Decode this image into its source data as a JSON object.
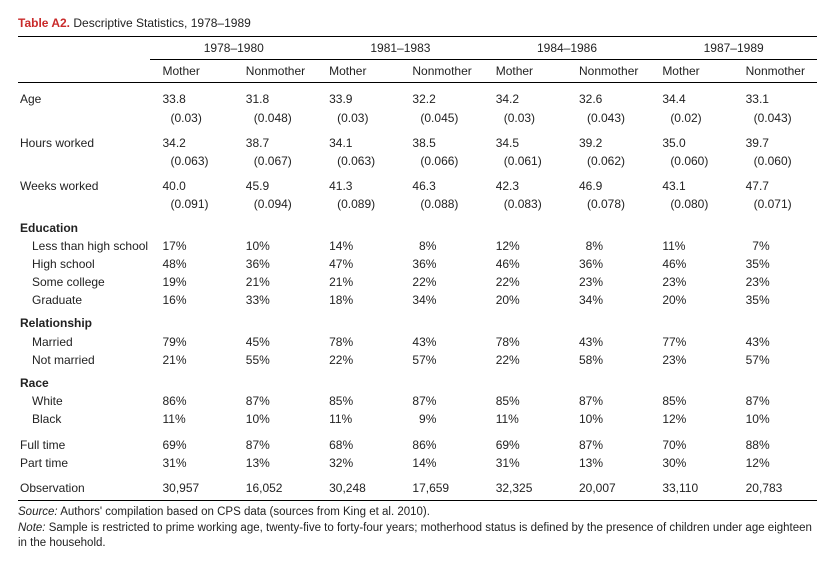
{
  "title_label": "Table A2.",
  "title_text": "Descriptive Statistics, 1978–1989",
  "periods": [
    "1978–1980",
    "1981–1983",
    "1984–1986",
    "1987–1989"
  ],
  "subheads": [
    "Mother",
    "Nonmother"
  ],
  "rows": [
    {
      "type": "gap"
    },
    {
      "label": "Age",
      "vals": [
        "33.8",
        "31.8",
        "33.9",
        "32.2",
        "34.2",
        "32.6",
        "34.4",
        "33.1"
      ]
    },
    {
      "type": "se",
      "vals": [
        "(0.03)",
        "(0.048)",
        "(0.03)",
        "(0.045)",
        "(0.03)",
        "(0.043)",
        "(0.02)",
        "(0.043)"
      ]
    },
    {
      "type": "gap"
    },
    {
      "label": "Hours worked",
      "vals": [
        "34.2",
        "38.7",
        "34.1",
        "38.5",
        "34.5",
        "39.2",
        "35.0",
        "39.7"
      ]
    },
    {
      "type": "se",
      "vals": [
        "(0.063)",
        "(0.067)",
        "(0.063)",
        "(0.066)",
        "(0.061)",
        "(0.062)",
        "(0.060)",
        "(0.060)"
      ]
    },
    {
      "type": "gap"
    },
    {
      "label": "Weeks worked",
      "vals": [
        "40.0",
        "45.9",
        "41.3",
        "46.3",
        "42.3",
        "46.9",
        "43.1",
        "47.7"
      ]
    },
    {
      "type": "se",
      "vals": [
        "(0.091)",
        "(0.094)",
        "(0.089)",
        "(0.088)",
        "(0.083)",
        "(0.078)",
        "(0.080)",
        "(0.071)"
      ]
    },
    {
      "type": "section",
      "label": "Education"
    },
    {
      "type": "indent",
      "label": "Less than high school",
      "vals": [
        "17%",
        "10%",
        "14%",
        "  8%",
        "12%",
        "  8%",
        "11%",
        "  7%"
      ]
    },
    {
      "type": "indent",
      "label": "High school",
      "vals": [
        "48%",
        "36%",
        "47%",
        "36%",
        "46%",
        "36%",
        "46%",
        "35%"
      ]
    },
    {
      "type": "indent",
      "label": "Some college",
      "vals": [
        "19%",
        "21%",
        "21%",
        "22%",
        "22%",
        "23%",
        "23%",
        "23%"
      ]
    },
    {
      "type": "indent",
      "label": "Graduate",
      "vals": [
        "16%",
        "33%",
        "18%",
        "34%",
        "20%",
        "34%",
        "20%",
        "35%"
      ]
    },
    {
      "type": "section",
      "label": "Relationship"
    },
    {
      "type": "indent",
      "label": "Married",
      "vals": [
        "79%",
        "45%",
        "78%",
        "43%",
        "78%",
        "43%",
        "77%",
        "43%"
      ]
    },
    {
      "type": "indent",
      "label": "Not married",
      "vals": [
        "21%",
        "55%",
        "22%",
        "57%",
        "22%",
        "58%",
        "23%",
        "57%"
      ]
    },
    {
      "type": "section",
      "label": "Race"
    },
    {
      "type": "indent",
      "label": "White",
      "vals": [
        "86%",
        "87%",
        "85%",
        "87%",
        "85%",
        "87%",
        "85%",
        "87%"
      ]
    },
    {
      "type": "indent",
      "label": "Black",
      "vals": [
        "11%",
        "10%",
        "11%",
        "  9%",
        "11%",
        "10%",
        "12%",
        "10%"
      ]
    },
    {
      "type": "gap"
    },
    {
      "label": "Full time",
      "vals": [
        "69%",
        "87%",
        "68%",
        "86%",
        "69%",
        "87%",
        "70%",
        "88%"
      ]
    },
    {
      "label": "Part time",
      "vals": [
        "31%",
        "13%",
        "32%",
        "14%",
        "31%",
        "13%",
        "30%",
        "12%"
      ]
    },
    {
      "type": "gap"
    },
    {
      "label": "Observation",
      "vals": [
        "30,957",
        "16,052",
        "30,248",
        "17,659",
        "32,325",
        "20,007",
        "33,110",
        "20,783"
      ],
      "last": true
    }
  ],
  "footnotes": [
    {
      "label": "Source:",
      "text": " Authors' compilation based on CPS data (sources from King et al. 2010)."
    },
    {
      "label": "Note:",
      "text": " Sample is restricted to prime working age, twenty-five to forty-four years; motherhood status is defined by the presence of children under age eighteen in the household."
    }
  ]
}
